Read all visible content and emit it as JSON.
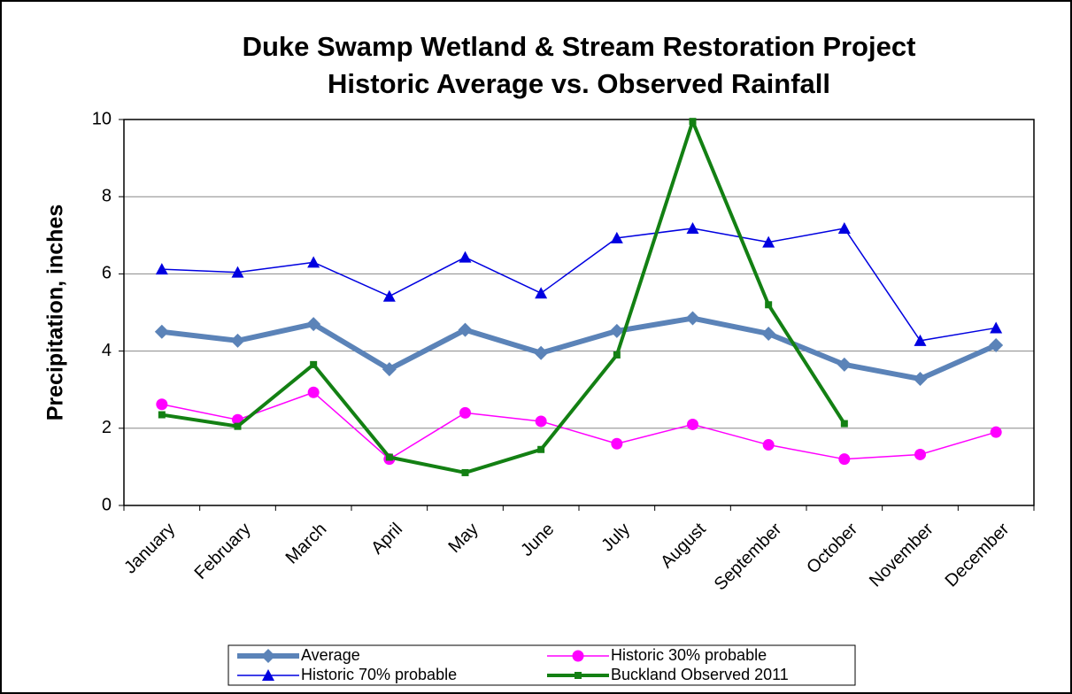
{
  "chart_data": {
    "type": "line",
    "title": "Duke Swamp Wetland & Stream Restoration Project",
    "subtitle": "Historic Average vs. Observed Rainfall",
    "y_label": "Precipitation, inches",
    "categories": [
      "January",
      "February",
      "March",
      "April",
      "May",
      "June",
      "July",
      "August",
      "September",
      "October",
      "November",
      "December"
    ],
    "series": [
      {
        "name": "Average",
        "color": "#5b83b8",
        "marker": "diamond",
        "width": 6,
        "values": [
          4.5,
          4.27,
          4.7,
          3.53,
          4.55,
          3.95,
          4.52,
          4.85,
          4.45,
          3.65,
          3.28,
          4.15
        ]
      },
      {
        "name": "Historic 30% probable",
        "color": "#ff00ff",
        "marker": "circle",
        "width": 1.5,
        "values": [
          2.62,
          2.22,
          2.93,
          1.2,
          2.4,
          2.18,
          1.6,
          2.1,
          1.57,
          1.2,
          1.32,
          1.9
        ]
      },
      {
        "name": "Historic 70% probable",
        "color": "#0000e0",
        "marker": "triangle",
        "width": 1.5,
        "values": [
          6.12,
          6.04,
          6.3,
          5.42,
          6.43,
          5.5,
          6.93,
          7.18,
          6.82,
          7.18,
          4.27,
          4.6
        ]
      },
      {
        "name": "Buckland Observed 2011",
        "color": "#138013",
        "marker": "square",
        "width": 4,
        "values": [
          2.35,
          2.05,
          3.65,
          1.25,
          0.85,
          1.45,
          3.9,
          9.95,
          5.2,
          2.12,
          null,
          null
        ]
      }
    ],
    "ylim": [
      0,
      10
    ],
    "yticks": [
      0,
      2,
      4,
      6,
      8,
      10
    ],
    "grid": true,
    "legend": "bottom"
  }
}
